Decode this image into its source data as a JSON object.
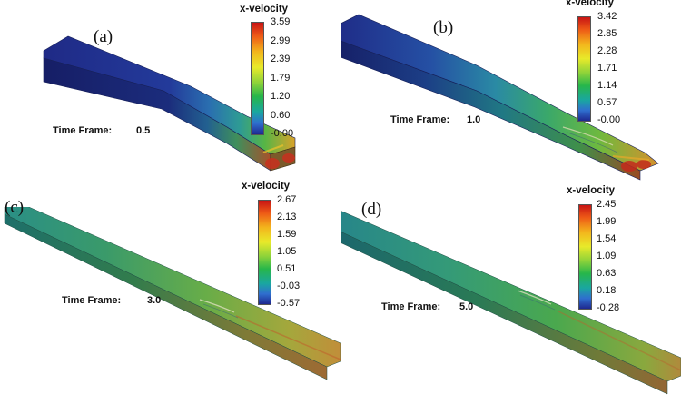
{
  "panels": [
    {
      "label": "(a)",
      "colorbar_title": "x-velocity",
      "colorbar_ticks": [
        "3.59",
        "2.99",
        "2.39",
        "1.79",
        "1.20",
        "0.60",
        "-0.00"
      ],
      "time_frame_label": "Time Frame:",
      "time_frame_value": "0.5"
    },
    {
      "label": "(b)",
      "colorbar_title": "x-velocity",
      "colorbar_ticks": [
        "3.42",
        "2.85",
        "2.28",
        "1.71",
        "1.14",
        "0.57",
        "-0.00"
      ],
      "time_frame_label": "Time Frame:",
      "time_frame_value": "1.0"
    },
    {
      "label": "(c)",
      "colorbar_title": "x-velocity",
      "colorbar_ticks": [
        "2.67",
        "2.13",
        "1.59",
        "1.05",
        "0.51",
        "-0.03",
        "-0.57"
      ],
      "time_frame_label": "Time Frame:",
      "time_frame_value": "3.0"
    },
    {
      "label": "(d)",
      "colorbar_title": "x-velocity",
      "colorbar_ticks": [
        "2.45",
        "1.99",
        "1.54",
        "1.09",
        "0.63",
        "0.18",
        "-0.28"
      ],
      "time_frame_label": "Time Frame:",
      "time_frame_value": "5.0"
    }
  ],
  "colors": {
    "colormap": [
      "#c81414",
      "#ee5a16",
      "#f3b51c",
      "#e8ea2a",
      "#8cd23a",
      "#27b64a",
      "#1aa7a0",
      "#2f6fcf",
      "#1e2890"
    ]
  }
}
